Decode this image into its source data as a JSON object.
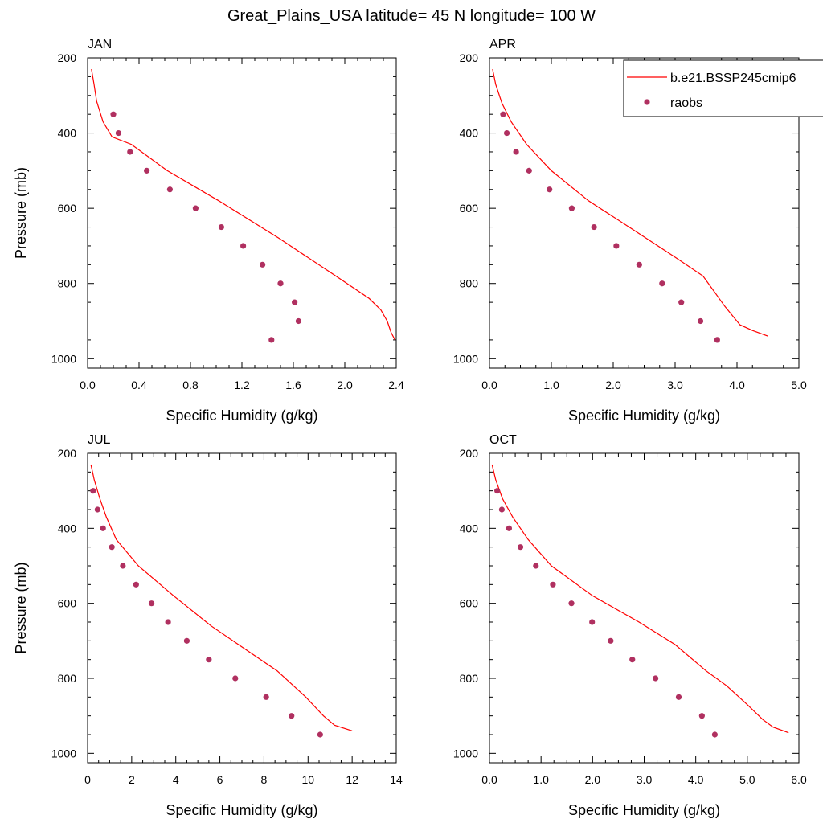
{
  "chart_data": {
    "type": "line",
    "title": "Great_Plains_USA  latitude= 45 N longitude= 100 W",
    "legend": {
      "placement": "top-right",
      "entries": [
        {
          "label": "b.e21.BSSP245cmip6",
          "style": "line",
          "color": "#ff0000"
        },
        {
          "label": "raobs",
          "style": "marker",
          "color": "#b03060"
        }
      ]
    },
    "panels": [
      {
        "label": "JAN",
        "xlabel": "Specific Humidity (g/kg)",
        "ylabel": "Pressure (mb)",
        "xlim": [
          0,
          2.4
        ],
        "ylim": [
          1025,
          200
        ],
        "xticks": [
          0,
          0.4,
          0.8,
          1.2,
          1.6,
          2.0,
          2.4
        ],
        "xtick_labels": [
          "0.0",
          "0.4",
          "0.8",
          "1.2",
          "1.6",
          "2.0",
          "2.4"
        ],
        "yticks": [
          200,
          400,
          600,
          800,
          1000
        ],
        "ytick_labels": [
          "200",
          "400",
          "600",
          "800",
          "1000"
        ],
        "model": {
          "x": [
            0.03,
            0.05,
            0.07,
            0.12,
            0.19,
            0.34,
            0.62,
            1.02,
            1.49,
            1.93,
            2.19,
            2.28,
            2.33,
            2.36,
            2.39
          ],
          "p": [
            230,
            270,
            315,
            370,
            410,
            430,
            500,
            580,
            680,
            780,
            840,
            870,
            900,
            930,
            950
          ]
        },
        "raobs": {
          "x": [
            0.2,
            0.24,
            0.33,
            0.46,
            0.64,
            0.84,
            1.04,
            1.21,
            1.36,
            1.5,
            1.61,
            1.64,
            1.43
          ],
          "p": [
            350,
            400,
            450,
            500,
            550,
            600,
            650,
            700,
            750,
            800,
            850,
            900,
            950
          ]
        }
      },
      {
        "label": "APR",
        "xlabel": "Specific Humidity (g/kg)",
        "ylabel": "",
        "xlim": [
          0,
          5.0
        ],
        "ylim": [
          1025,
          200
        ],
        "xticks": [
          0,
          1,
          2,
          3,
          4,
          5
        ],
        "xtick_labels": [
          "0.0",
          "1.0",
          "2.0",
          "3.0",
          "4.0",
          "5.0"
        ],
        "yticks": [
          200,
          400,
          600,
          800,
          1000
        ],
        "ytick_labels": [
          "200",
          "400",
          "600",
          "800",
          "1000"
        ],
        "model": {
          "x": [
            0.05,
            0.1,
            0.2,
            0.35,
            0.6,
            1.0,
            1.6,
            2.35,
            3.0,
            3.45,
            3.8,
            4.05,
            4.25,
            4.5
          ],
          "p": [
            230,
            270,
            320,
            370,
            430,
            500,
            580,
            660,
            730,
            780,
            860,
            910,
            925,
            940
          ]
        },
        "raobs": {
          "x": [
            0.22,
            0.28,
            0.43,
            0.64,
            0.97,
            1.33,
            1.69,
            2.05,
            2.42,
            2.79,
            3.1,
            3.41,
            3.68
          ],
          "p": [
            350,
            400,
            450,
            500,
            550,
            600,
            650,
            700,
            750,
            800,
            850,
            900,
            950
          ]
        }
      },
      {
        "label": "JUL",
        "xlabel": "Specific Humidity (g/kg)",
        "ylabel": "Pressure (mb)",
        "xlim": [
          0,
          14
        ],
        "ylim": [
          1025,
          200
        ],
        "xticks": [
          0,
          2,
          4,
          6,
          8,
          10,
          12,
          14
        ],
        "xtick_labels": [
          "0",
          "2",
          "4",
          "6",
          "8",
          "10",
          "12",
          "14"
        ],
        "yticks": [
          200,
          400,
          600,
          800,
          1000
        ],
        "ytick_labels": [
          "200",
          "400",
          "600",
          "800",
          "1000"
        ],
        "model": {
          "x": [
            0.15,
            0.3,
            0.55,
            0.85,
            1.3,
            2.3,
            3.9,
            5.6,
            7.1,
            8.6,
            9.9,
            10.7,
            11.2,
            12.0
          ],
          "p": [
            230,
            270,
            320,
            370,
            430,
            500,
            580,
            660,
            720,
            780,
            850,
            900,
            925,
            940
          ]
        },
        "raobs": {
          "x": [
            0.25,
            0.45,
            0.7,
            1.1,
            1.6,
            2.2,
            2.9,
            3.65,
            4.5,
            5.5,
            6.7,
            8.1,
            9.25,
            10.55
          ],
          "p": [
            300,
            350,
            400,
            450,
            500,
            550,
            600,
            650,
            700,
            750,
            800,
            850,
            900,
            950
          ]
        }
      },
      {
        "label": "OCT",
        "xlabel": "Specific Humidity (g/kg)",
        "ylabel": "",
        "xlim": [
          0,
          6.0
        ],
        "ylim": [
          1025,
          200
        ],
        "xticks": [
          0,
          1,
          2,
          3,
          4,
          5,
          6
        ],
        "xtick_labels": [
          "0.0",
          "1.0",
          "2.0",
          "3.0",
          "4.0",
          "5.0",
          "6.0"
        ],
        "yticks": [
          200,
          400,
          600,
          800,
          1000
        ],
        "ytick_labels": [
          "200",
          "400",
          "600",
          "800",
          "1000"
        ],
        "model": {
          "x": [
            0.05,
            0.12,
            0.25,
            0.45,
            0.75,
            1.2,
            2.0,
            2.9,
            3.6,
            4.2,
            4.6,
            5.0,
            5.3,
            5.5,
            5.8
          ],
          "p": [
            230,
            270,
            320,
            370,
            430,
            500,
            580,
            650,
            710,
            780,
            820,
            870,
            910,
            930,
            945
          ]
        },
        "raobs": {
          "x": [
            0.15,
            0.24,
            0.38,
            0.6,
            0.9,
            1.23,
            1.59,
            1.99,
            2.35,
            2.77,
            3.22,
            3.67,
            4.12,
            4.37
          ],
          "p": [
            300,
            350,
            400,
            450,
            500,
            550,
            600,
            650,
            700,
            750,
            800,
            850,
            900,
            950
          ]
        }
      }
    ]
  }
}
